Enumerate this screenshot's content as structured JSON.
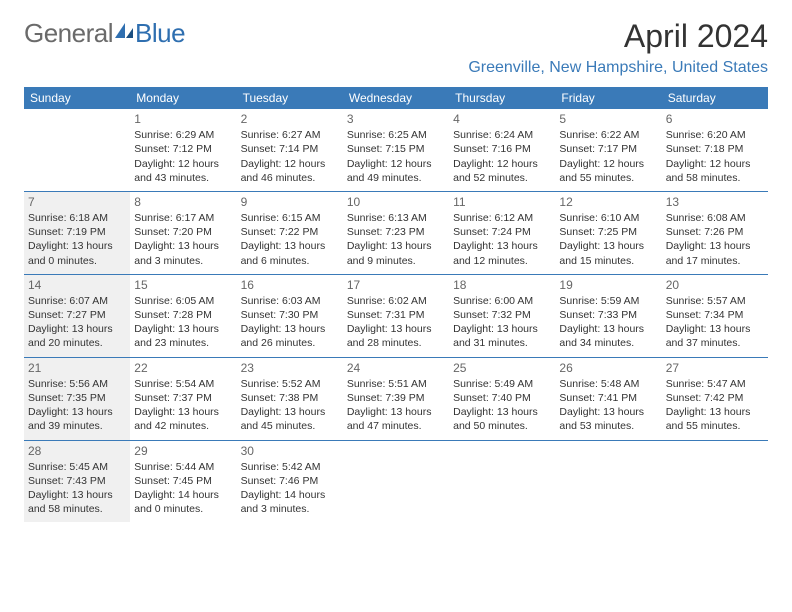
{
  "brand": {
    "part1": "General",
    "part2": "Blue"
  },
  "title": "April 2024",
  "location": "Greenville, New Hampshire, United States",
  "colors": {
    "header_bg": "#3a7ab8",
    "header_text": "#ffffff",
    "row_border": "#3a7ab8",
    "shade_bg": "#f0f0f0",
    "body_text": "#333333",
    "day_num": "#666666",
    "brand_gray": "#6a6a6a",
    "brand_blue": "#2f6fb0",
    "location_color": "#3a7ab8"
  },
  "typography": {
    "title_fontsize": 32,
    "location_fontsize": 16,
    "header_fontsize": 12,
    "daynum_fontsize": 12,
    "cell_fontsize": 10.5
  },
  "days_of_week": [
    "Sunday",
    "Monday",
    "Tuesday",
    "Wednesday",
    "Thursday",
    "Friday",
    "Saturday"
  ],
  "weeks": [
    [
      {
        "day": "",
        "shaded": false,
        "lines": []
      },
      {
        "day": "1",
        "shaded": false,
        "lines": [
          "Sunrise: 6:29 AM",
          "Sunset: 7:12 PM",
          "Daylight: 12 hours",
          "and 43 minutes."
        ]
      },
      {
        "day": "2",
        "shaded": false,
        "lines": [
          "Sunrise: 6:27 AM",
          "Sunset: 7:14 PM",
          "Daylight: 12 hours",
          "and 46 minutes."
        ]
      },
      {
        "day": "3",
        "shaded": false,
        "lines": [
          "Sunrise: 6:25 AM",
          "Sunset: 7:15 PM",
          "Daylight: 12 hours",
          "and 49 minutes."
        ]
      },
      {
        "day": "4",
        "shaded": false,
        "lines": [
          "Sunrise: 6:24 AM",
          "Sunset: 7:16 PM",
          "Daylight: 12 hours",
          "and 52 minutes."
        ]
      },
      {
        "day": "5",
        "shaded": false,
        "lines": [
          "Sunrise: 6:22 AM",
          "Sunset: 7:17 PM",
          "Daylight: 12 hours",
          "and 55 minutes."
        ]
      },
      {
        "day": "6",
        "shaded": false,
        "lines": [
          "Sunrise: 6:20 AM",
          "Sunset: 7:18 PM",
          "Daylight: 12 hours",
          "and 58 minutes."
        ]
      }
    ],
    [
      {
        "day": "7",
        "shaded": true,
        "lines": [
          "Sunrise: 6:18 AM",
          "Sunset: 7:19 PM",
          "Daylight: 13 hours",
          "and 0 minutes."
        ]
      },
      {
        "day": "8",
        "shaded": false,
        "lines": [
          "Sunrise: 6:17 AM",
          "Sunset: 7:20 PM",
          "Daylight: 13 hours",
          "and 3 minutes."
        ]
      },
      {
        "day": "9",
        "shaded": false,
        "lines": [
          "Sunrise: 6:15 AM",
          "Sunset: 7:22 PM",
          "Daylight: 13 hours",
          "and 6 minutes."
        ]
      },
      {
        "day": "10",
        "shaded": false,
        "lines": [
          "Sunrise: 6:13 AM",
          "Sunset: 7:23 PM",
          "Daylight: 13 hours",
          "and 9 minutes."
        ]
      },
      {
        "day": "11",
        "shaded": false,
        "lines": [
          "Sunrise: 6:12 AM",
          "Sunset: 7:24 PM",
          "Daylight: 13 hours",
          "and 12 minutes."
        ]
      },
      {
        "day": "12",
        "shaded": false,
        "lines": [
          "Sunrise: 6:10 AM",
          "Sunset: 7:25 PM",
          "Daylight: 13 hours",
          "and 15 minutes."
        ]
      },
      {
        "day": "13",
        "shaded": false,
        "lines": [
          "Sunrise: 6:08 AM",
          "Sunset: 7:26 PM",
          "Daylight: 13 hours",
          "and 17 minutes."
        ]
      }
    ],
    [
      {
        "day": "14",
        "shaded": true,
        "lines": [
          "Sunrise: 6:07 AM",
          "Sunset: 7:27 PM",
          "Daylight: 13 hours",
          "and 20 minutes."
        ]
      },
      {
        "day": "15",
        "shaded": false,
        "lines": [
          "Sunrise: 6:05 AM",
          "Sunset: 7:28 PM",
          "Daylight: 13 hours",
          "and 23 minutes."
        ]
      },
      {
        "day": "16",
        "shaded": false,
        "lines": [
          "Sunrise: 6:03 AM",
          "Sunset: 7:30 PM",
          "Daylight: 13 hours",
          "and 26 minutes."
        ]
      },
      {
        "day": "17",
        "shaded": false,
        "lines": [
          "Sunrise: 6:02 AM",
          "Sunset: 7:31 PM",
          "Daylight: 13 hours",
          "and 28 minutes."
        ]
      },
      {
        "day": "18",
        "shaded": false,
        "lines": [
          "Sunrise: 6:00 AM",
          "Sunset: 7:32 PM",
          "Daylight: 13 hours",
          "and 31 minutes."
        ]
      },
      {
        "day": "19",
        "shaded": false,
        "lines": [
          "Sunrise: 5:59 AM",
          "Sunset: 7:33 PM",
          "Daylight: 13 hours",
          "and 34 minutes."
        ]
      },
      {
        "day": "20",
        "shaded": false,
        "lines": [
          "Sunrise: 5:57 AM",
          "Sunset: 7:34 PM",
          "Daylight: 13 hours",
          "and 37 minutes."
        ]
      }
    ],
    [
      {
        "day": "21",
        "shaded": true,
        "lines": [
          "Sunrise: 5:56 AM",
          "Sunset: 7:35 PM",
          "Daylight: 13 hours",
          "and 39 minutes."
        ]
      },
      {
        "day": "22",
        "shaded": false,
        "lines": [
          "Sunrise: 5:54 AM",
          "Sunset: 7:37 PM",
          "Daylight: 13 hours",
          "and 42 minutes."
        ]
      },
      {
        "day": "23",
        "shaded": false,
        "lines": [
          "Sunrise: 5:52 AM",
          "Sunset: 7:38 PM",
          "Daylight: 13 hours",
          "and 45 minutes."
        ]
      },
      {
        "day": "24",
        "shaded": false,
        "lines": [
          "Sunrise: 5:51 AM",
          "Sunset: 7:39 PM",
          "Daylight: 13 hours",
          "and 47 minutes."
        ]
      },
      {
        "day": "25",
        "shaded": false,
        "lines": [
          "Sunrise: 5:49 AM",
          "Sunset: 7:40 PM",
          "Daylight: 13 hours",
          "and 50 minutes."
        ]
      },
      {
        "day": "26",
        "shaded": false,
        "lines": [
          "Sunrise: 5:48 AM",
          "Sunset: 7:41 PM",
          "Daylight: 13 hours",
          "and 53 minutes."
        ]
      },
      {
        "day": "27",
        "shaded": false,
        "lines": [
          "Sunrise: 5:47 AM",
          "Sunset: 7:42 PM",
          "Daylight: 13 hours",
          "and 55 minutes."
        ]
      }
    ],
    [
      {
        "day": "28",
        "shaded": true,
        "lines": [
          "Sunrise: 5:45 AM",
          "Sunset: 7:43 PM",
          "Daylight: 13 hours",
          "and 58 minutes."
        ]
      },
      {
        "day": "29",
        "shaded": false,
        "lines": [
          "Sunrise: 5:44 AM",
          "Sunset: 7:45 PM",
          "Daylight: 14 hours",
          "and 0 minutes."
        ]
      },
      {
        "day": "30",
        "shaded": false,
        "lines": [
          "Sunrise: 5:42 AM",
          "Sunset: 7:46 PM",
          "Daylight: 14 hours",
          "and 3 minutes."
        ]
      },
      {
        "day": "",
        "shaded": false,
        "lines": []
      },
      {
        "day": "",
        "shaded": false,
        "lines": []
      },
      {
        "day": "",
        "shaded": false,
        "lines": []
      },
      {
        "day": "",
        "shaded": false,
        "lines": []
      }
    ]
  ]
}
